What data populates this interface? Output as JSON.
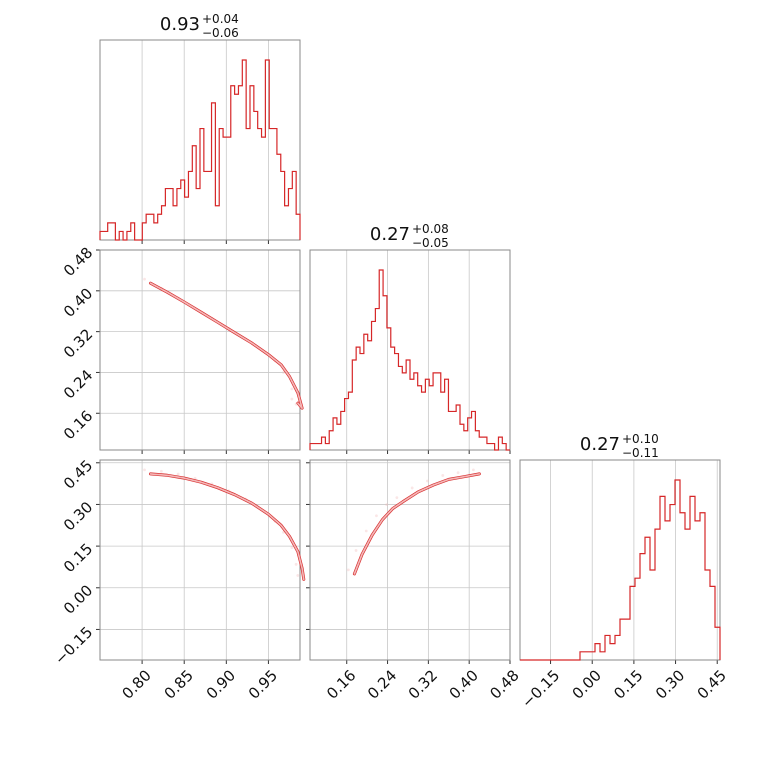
{
  "chart_data": {
    "type": "corner",
    "colors": {
      "line": "#d62728",
      "fill_light": "#f4b8b8",
      "grid": "#c8c8c8"
    },
    "grid": true,
    "parameters": [
      {
        "title_main": "0.93",
        "title_plus": "+0.04",
        "title_minus": "−0.06",
        "range": [
          0.75,
          0.9875
        ],
        "ticks": [
          0.8,
          0.85,
          0.9,
          0.95
        ],
        "tick_labels": [
          "0.80",
          "0.85",
          "0.90",
          "0.95"
        ]
      },
      {
        "title_main": "0.27",
        "title_plus": "+0.08",
        "title_minus": "−0.05",
        "range": [
          0.088,
          0.48
        ],
        "ticks": [
          0.16,
          0.24,
          0.32,
          0.4,
          0.48
        ],
        "tick_labels": [
          "0.16",
          "0.24",
          "0.32",
          "0.40",
          "0.48"
        ]
      },
      {
        "title_main": "0.27",
        "title_plus": "+0.10",
        "title_minus": "−0.11",
        "range": [
          -0.26,
          0.46
        ],
        "ticks": [
          -0.15,
          0.0,
          0.15,
          0.3,
          0.45
        ],
        "tick_labels": [
          "−0.15",
          "0.00",
          "0.15",
          "0.30",
          "0.45"
        ]
      }
    ],
    "histograms": [
      {
        "param": 0,
        "counts": [
          1,
          1,
          2,
          2,
          0,
          1,
          0,
          1,
          2,
          0,
          0,
          2,
          3,
          3,
          2,
          3,
          4,
          6,
          6,
          4,
          6,
          7,
          5,
          8,
          11,
          6,
          13,
          8,
          8,
          16,
          4,
          13,
          12,
          12,
          18,
          17,
          18,
          21,
          13,
          18,
          15,
          13,
          12,
          21,
          13,
          13,
          10,
          8,
          4,
          6,
          8,
          3
        ],
        "max": 21
      },
      {
        "param": 1,
        "counts": [
          1,
          1,
          1,
          2,
          1,
          3,
          5,
          4,
          6,
          8,
          9,
          14,
          16,
          15,
          18,
          17,
          20,
          22,
          28,
          24,
          19,
          16,
          15,
          13,
          12,
          14,
          11,
          12,
          10,
          9,
          11,
          10,
          12,
          12,
          9,
          11,
          6,
          6,
          7,
          4,
          3,
          5,
          6,
          3,
          2,
          2,
          1,
          1,
          0,
          2,
          1,
          0
        ],
        "max": 28
      },
      {
        "param": 2,
        "counts": [
          0,
          0,
          0,
          0,
          0,
          0,
          0,
          0,
          0,
          0,
          0,
          0,
          1,
          1,
          1,
          2,
          1,
          3,
          2,
          3,
          5,
          5,
          9,
          10,
          13,
          15,
          11,
          16,
          20,
          17,
          19,
          22,
          18,
          16,
          20,
          17,
          18,
          11,
          9,
          4
        ],
        "max": 22
      }
    ],
    "pairs": [
      {
        "x_param": 0,
        "y_param": 1,
        "ridge": [
          [
            0.81,
            0.415
          ],
          [
            0.83,
            0.397
          ],
          [
            0.85,
            0.378
          ],
          [
            0.87,
            0.358
          ],
          [
            0.89,
            0.338
          ],
          [
            0.91,
            0.318
          ],
          [
            0.93,
            0.298
          ],
          [
            0.95,
            0.275
          ],
          [
            0.965,
            0.255
          ],
          [
            0.975,
            0.232
          ],
          [
            0.985,
            0.2
          ],
          [
            0.99,
            0.17
          ],
          [
            0.985,
            0.18
          ]
        ]
      },
      {
        "x_param": 0,
        "y_param": 2,
        "ridge": [
          [
            0.81,
            0.41
          ],
          [
            0.83,
            0.405
          ],
          [
            0.85,
            0.395
          ],
          [
            0.87,
            0.38
          ],
          [
            0.89,
            0.36
          ],
          [
            0.91,
            0.335
          ],
          [
            0.93,
            0.305
          ],
          [
            0.95,
            0.265
          ],
          [
            0.965,
            0.225
          ],
          [
            0.975,
            0.185
          ],
          [
            0.985,
            0.13
          ],
          [
            0.99,
            0.07
          ],
          [
            0.992,
            0.03
          ]
        ]
      },
      {
        "x_param": 1,
        "y_param": 2,
        "ridge": [
          [
            0.175,
            0.05
          ],
          [
            0.19,
            0.12
          ],
          [
            0.21,
            0.19
          ],
          [
            0.23,
            0.245
          ],
          [
            0.25,
            0.285
          ],
          [
            0.27,
            0.31
          ],
          [
            0.3,
            0.345
          ],
          [
            0.33,
            0.37
          ],
          [
            0.36,
            0.39
          ],
          [
            0.39,
            0.4
          ],
          [
            0.42,
            0.41
          ]
        ]
      }
    ]
  }
}
